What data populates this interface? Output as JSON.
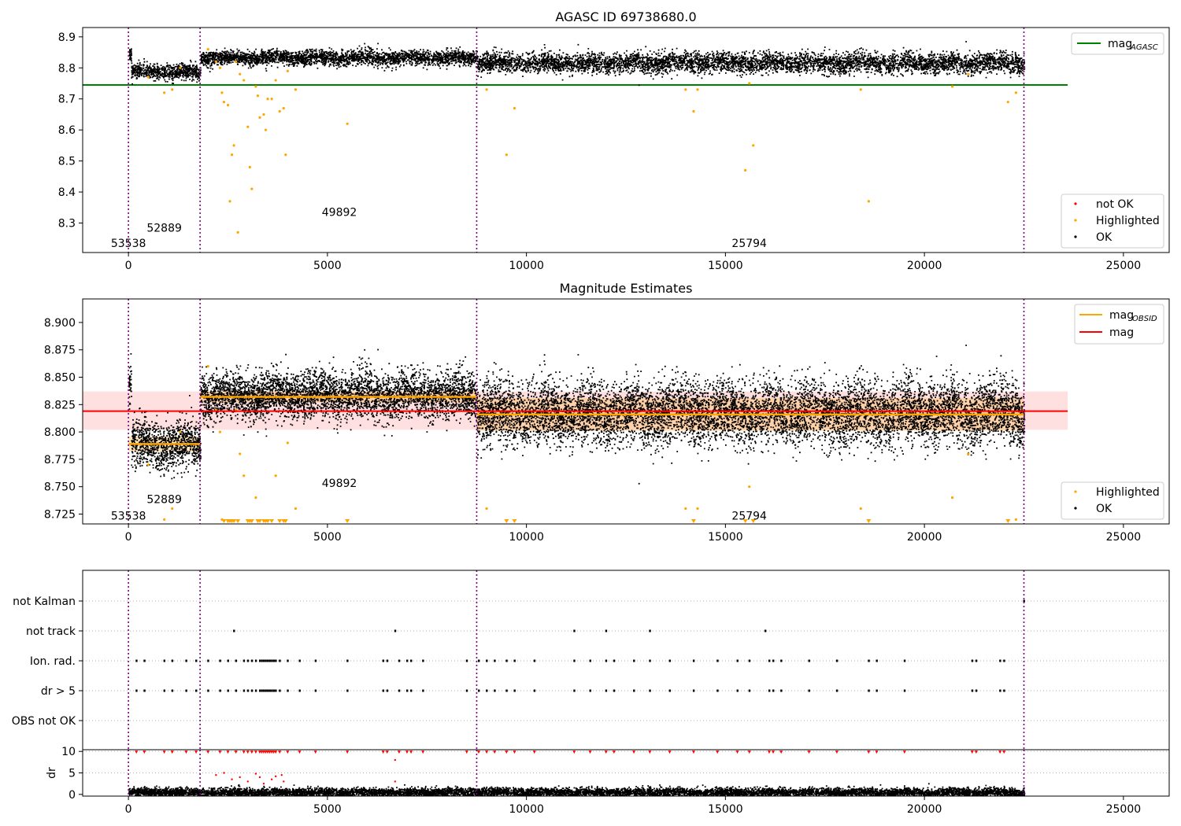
{
  "chart_data": [
    {
      "type": "scatter",
      "title": "AGASC ID 69738680.0",
      "xlim": [
        -1150,
        26150
      ],
      "ylim": [
        8.205,
        8.93
      ],
      "xticks": [
        0,
        5000,
        10000,
        15000,
        20000,
        25000
      ],
      "yticks": [
        8.3,
        8.4,
        8.5,
        8.6,
        8.7,
        8.8,
        8.9
      ],
      "lines": [
        {
          "name": "mag_AGASC",
          "label_main": "mag",
          "label_sub": "AGASC",
          "y": 8.745,
          "x": [
            -1150,
            23600
          ],
          "color": "#008000"
        }
      ],
      "obsid_boundaries": [
        0,
        1800,
        8750,
        22500
      ],
      "obsid_annotations": [
        {
          "text": "53538",
          "x": 0,
          "y": 8.235
        },
        {
          "text": "52889",
          "x": 900,
          "y": 8.285
        },
        {
          "text": "49892",
          "x": 5300,
          "y": 8.335
        },
        {
          "text": "25794",
          "x": 15600,
          "y": 8.235
        }
      ],
      "legend": [
        {
          "label": "not OK",
          "color": "#ff0000"
        },
        {
          "label": "Highlighted",
          "color": "#ffa500"
        },
        {
          "label": "OK",
          "color": "#000000"
        }
      ],
      "segments": [
        {
          "x0": 0,
          "x1": 60,
          "mean": 8.845,
          "spread": 0.012
        },
        {
          "x0": 60,
          "x1": 1800,
          "mean": 8.789,
          "spread": 0.012
        },
        {
          "x0": 1800,
          "x1": 8750,
          "mean": 8.834,
          "spread": 0.012
        },
        {
          "x0": 8750,
          "x1": 22500,
          "mean": 8.818,
          "spread": 0.016
        }
      ],
      "highlighted_points": [
        [
          2000,
          8.86
        ],
        [
          2200,
          8.82
        ],
        [
          2300,
          8.8
        ],
        [
          2350,
          8.72
        ],
        [
          2400,
          8.69
        ],
        [
          2500,
          8.68
        ],
        [
          2550,
          8.37
        ],
        [
          2600,
          8.52
        ],
        [
          2650,
          8.55
        ],
        [
          2700,
          8.82
        ],
        [
          2750,
          8.27
        ],
        [
          2800,
          8.78
        ],
        [
          2900,
          8.76
        ],
        [
          3000,
          8.61
        ],
        [
          3050,
          8.48
        ],
        [
          3100,
          8.41
        ],
        [
          3200,
          8.74
        ],
        [
          3250,
          8.71
        ],
        [
          3300,
          8.64
        ],
        [
          3400,
          8.65
        ],
        [
          3450,
          8.6
        ],
        [
          3500,
          8.7
        ],
        [
          3600,
          8.7
        ],
        [
          3700,
          8.76
        ],
        [
          3800,
          8.66
        ],
        [
          3900,
          8.67
        ],
        [
          3950,
          8.52
        ],
        [
          4000,
          8.79
        ],
        [
          4200,
          8.73
        ],
        [
          5500,
          8.62
        ],
        [
          9000,
          8.73
        ],
        [
          9500,
          8.52
        ],
        [
          9700,
          8.67
        ],
        [
          14000,
          8.73
        ],
        [
          14200,
          8.66
        ],
        [
          14300,
          8.73
        ],
        [
          15500,
          8.47
        ],
        [
          15600,
          8.75
        ],
        [
          15700,
          8.55
        ],
        [
          18400,
          8.73
        ],
        [
          18600,
          8.37
        ],
        [
          22100,
          8.69
        ],
        [
          22300,
          8.72
        ],
        [
          500,
          8.77
        ],
        [
          900,
          8.72
        ],
        [
          1100,
          8.73
        ],
        [
          1300,
          8.8
        ],
        [
          20700,
          8.74
        ],
        [
          21100,
          8.78
        ]
      ]
    },
    {
      "type": "scatter",
      "title": "Magnitude Estimates",
      "xlim": [
        -1150,
        26150
      ],
      "ylim": [
        8.716,
        8.9215
      ],
      "xticks": [
        0,
        5000,
        10000,
        15000,
        20000,
        25000
      ],
      "yticks": [
        8.725,
        8.75,
        8.775,
        8.8,
        8.825,
        8.85,
        8.875,
        8.9
      ],
      "ytick_labels": [
        "8.725",
        "8.750",
        "8.775",
        "8.800",
        "8.825",
        "8.850",
        "8.875",
        "8.900"
      ],
      "mag_line": {
        "label": "mag",
        "y": 8.819,
        "band": [
          8.802,
          8.837
        ],
        "x": [
          -1150,
          23600
        ],
        "color": "#ff0000"
      },
      "mag_obsid": {
        "label_main": "mag",
        "label_sub": "OBSID",
        "color": "#ffa500",
        "segments": [
          {
            "x0": 0,
            "x1": 1800,
            "y": 8.789,
            "band": [
              8.782,
              8.796
            ]
          },
          {
            "x0": 1800,
            "x1": 8750,
            "y": 8.832,
            "band": [
              8.827,
              8.837
            ]
          },
          {
            "x0": 8750,
            "x1": 22500,
            "y": 8.816,
            "band": [
              8.801,
              8.831
            ]
          }
        ]
      },
      "legend_top": [
        {
          "label_main": "mag",
          "label_sub": "OBSID",
          "color": "#ffa500"
        },
        {
          "label_main": "mag",
          "label_sub": "",
          "color": "#ff0000"
        }
      ],
      "legend_bottom": [
        {
          "label": "Highlighted",
          "color": "#ffa500"
        },
        {
          "label": "OK",
          "color": "#000000"
        }
      ],
      "obsid_annotations": [
        {
          "text": "53538",
          "x": 0,
          "y": 8.7235
        },
        {
          "text": "52889",
          "x": 900,
          "y": 8.7385
        },
        {
          "text": "49892",
          "x": 5300,
          "y": 8.7535
        },
        {
          "text": "25794",
          "x": 15600,
          "y": 8.7235
        }
      ]
    },
    {
      "type": "scatter",
      "title": "",
      "categories": [
        "not Kalman",
        "not track",
        "Ion. rad.",
        "dr > 5",
        "OBS not OK"
      ],
      "xlim": [
        -1150,
        26150
      ],
      "xticks": [
        0,
        5000,
        10000,
        15000,
        20000,
        25000
      ],
      "flag_events": {
        "not Kalman": [
          22500
        ],
        "not track": [
          2650,
          6700,
          11200,
          12000,
          13100,
          16000
        ],
        "Ion. rad.": [
          200,
          400,
          900,
          1100,
          1450,
          1700,
          2000,
          2300,
          2500,
          2700,
          2900,
          3000,
          3100,
          3200,
          3300,
          3350,
          3400,
          3450,
          3500,
          3550,
          3600,
          3650,
          3700,
          3800,
          4000,
          4300,
          4700,
          5500,
          6400,
          6500,
          6800,
          7000,
          7100,
          7400,
          8500,
          8800,
          9000,
          9200,
          9500,
          9700,
          10200,
          11200,
          11600,
          12000,
          12200,
          12700,
          13100,
          13600,
          14200,
          14800,
          15300,
          15600,
          16100,
          16200,
          16400,
          17100,
          17800,
          18600,
          18800,
          19500,
          21200,
          21300,
          21900,
          22000
        ],
        "dr > 5": [
          200,
          400,
          900,
          1100,
          1450,
          1700,
          2000,
          2300,
          2500,
          2700,
          2900,
          3000,
          3100,
          3200,
          3300,
          3350,
          3400,
          3450,
          3500,
          3550,
          3600,
          3650,
          3700,
          3800,
          4000,
          4300,
          4700,
          5500,
          6400,
          6500,
          6800,
          7000,
          7100,
          7400,
          8500,
          8800,
          9000,
          9200,
          9500,
          9700,
          10200,
          11200,
          11600,
          12000,
          12200,
          12700,
          13100,
          13600,
          14200,
          14800,
          15300,
          15600,
          16100,
          16200,
          16400,
          17100,
          17800,
          18600,
          18800,
          19500,
          21200,
          21300,
          21900,
          22000
        ]
      }
    },
    {
      "type": "scatter",
      "title": "",
      "ylabel": "dr",
      "xlim": [
        -1150,
        26150
      ],
      "ylim": [
        -0.4,
        10.4
      ],
      "xticks": [
        0,
        5000,
        10000,
        15000,
        20000,
        25000
      ],
      "yticks": [
        0,
        5,
        10
      ],
      "hline": 10,
      "clipped_x": [
        200,
        400,
        900,
        1100,
        1450,
        1700,
        2000,
        2300,
        2500,
        2700,
        2900,
        3000,
        3100,
        3200,
        3300,
        3350,
        3400,
        3450,
        3500,
        3550,
        3600,
        3650,
        3700,
        3800,
        4000,
        4300,
        4700,
        5500,
        6400,
        6500,
        6800,
        7000,
        7100,
        7400,
        8500,
        8800,
        9000,
        9200,
        9500,
        9700,
        10200,
        11200,
        11600,
        12000,
        12200,
        12700,
        13100,
        13600,
        14200,
        14800,
        15300,
        15600,
        16100,
        16200,
        16400,
        17100,
        17800,
        18600,
        18800,
        19500,
        21200,
        21300,
        21900,
        22000
      ],
      "red_points": [
        [
          2200,
          4.5
        ],
        [
          2400,
          5.0
        ],
        [
          2600,
          3.5
        ],
        [
          2800,
          4.0
        ],
        [
          3000,
          3.0
        ],
        [
          3200,
          4.8
        ],
        [
          3300,
          4.0
        ],
        [
          3400,
          2.5
        ],
        [
          3600,
          3.5
        ],
        [
          3700,
          4.2
        ],
        [
          3850,
          4.5
        ],
        [
          3900,
          3.0
        ],
        [
          6700,
          8.0
        ],
        [
          6700,
          3.0
        ]
      ],
      "baseline": {
        "x0": 0,
        "x1": 22500,
        "mean": 0.6,
        "spread": 0.5
      }
    }
  ]
}
